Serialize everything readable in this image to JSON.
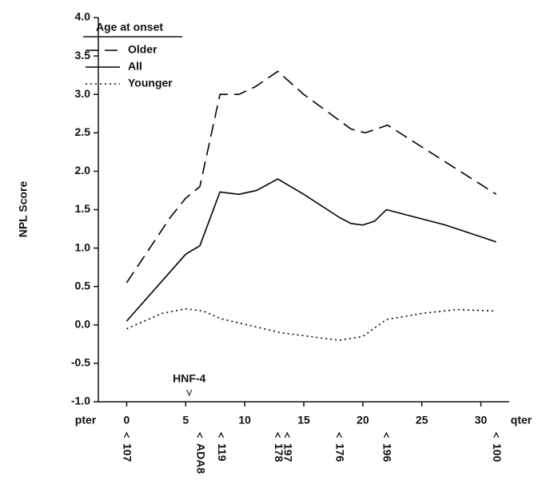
{
  "chart_data": {
    "type": "line",
    "y_label": "NPL Score",
    "legend_title": "Age at onset",
    "legend": "top-left",
    "ylim": [
      -1.0,
      4.0
    ],
    "yticks": [
      {
        "value": -1,
        "label": "-1.0"
      },
      {
        "value": -0.5,
        "label": "-0.5"
      },
      {
        "value": 0,
        "label": "0.0"
      },
      {
        "value": 0.5,
        "label": "0.5"
      },
      {
        "value": 1,
        "label": "1.0"
      },
      {
        "value": 1.5,
        "label": "1.5"
      },
      {
        "value": 2,
        "label": "2.0"
      },
      {
        "value": 2.5,
        "label": "2.5"
      },
      {
        "value": 3,
        "label": "3.0"
      },
      {
        "value": 3.5,
        "label": "3.5"
      },
      {
        "value": 4,
        "label": "4.0"
      }
    ],
    "xlim": [
      -2.4,
      32.4
    ],
    "xticks": [
      0,
      5,
      10,
      15,
      20,
      25,
      30
    ],
    "x_start_label": "pter",
    "x_end_label": "qter",
    "annotation": {
      "label": "HNF-4",
      "x": 5.3
    },
    "markers": [
      {
        "label": "107",
        "x": 0
      },
      {
        "label": "ADA8",
        "x": 6.2
      },
      {
        "label": "119",
        "x": 8
      },
      {
        "label": "178",
        "x": 12.8
      },
      {
        "label": "197",
        "x": 13.6
      },
      {
        "label": "176",
        "x": 18
      },
      {
        "label": "196",
        "x": 22
      },
      {
        "label": "100",
        "x": 31.3
      }
    ],
    "series": [
      {
        "name": "Older",
        "color": "#000000",
        "dash": "dashed",
        "x": [
          0,
          3.7,
          5,
          6.2,
          7.9,
          9.5,
          10.9,
          12.8,
          15,
          19,
          20.2,
          22.1,
          31.3
        ],
        "values": [
          0.55,
          1.4,
          1.65,
          1.8,
          3.0,
          3.0,
          3.1,
          3.3,
          3.0,
          2.55,
          2.5,
          2.6,
          1.7
        ]
      },
      {
        "name": "All",
        "color": "#000000",
        "dash": "solid",
        "x": [
          0,
          5,
          6.2,
          7.9,
          9.5,
          11,
          12.8,
          15,
          18,
          19,
          20,
          21,
          22,
          27,
          31.3
        ],
        "values": [
          0.05,
          0.92,
          1.03,
          1.73,
          1.7,
          1.75,
          1.9,
          1.7,
          1.4,
          1.32,
          1.3,
          1.35,
          1.5,
          1.3,
          1.08
        ]
      },
      {
        "name": "Younger",
        "color": "#000000",
        "dash": "dotted",
        "x": [
          0,
          3,
          5,
          6.5,
          8,
          13,
          18,
          20,
          22,
          25,
          28,
          31.3
        ],
        "values": [
          -0.05,
          0.15,
          0.21,
          0.18,
          0.08,
          -0.1,
          -0.2,
          -0.15,
          0.07,
          0.15,
          0.2,
          0.18
        ]
      }
    ]
  }
}
